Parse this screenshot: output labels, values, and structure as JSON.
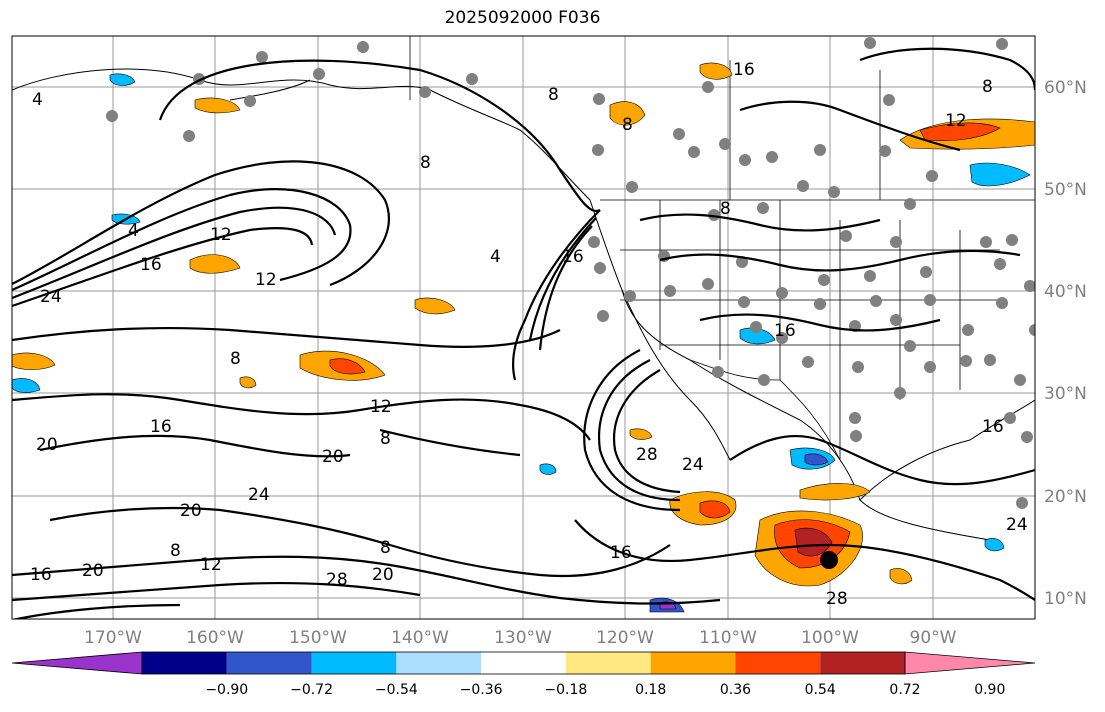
{
  "title": "2025092000 F036",
  "lon_labels": [
    "170°W",
    "160°W",
    "150°W",
    "140°W",
    "130°W",
    "120°W",
    "110°W",
    "100°W",
    "90°W"
  ],
  "lat_labels": [
    "60°N",
    "50°N",
    "40°N",
    "30°N",
    "20°N",
    "10°N"
  ],
  "colorbar": {
    "colors": [
      "#9933cc",
      "#00008b",
      "#3355cc",
      "#00bbff",
      "#aaddff",
      "#ffffff",
      "#ffe880",
      "#ffa500",
      "#ff4500",
      "#b22222",
      "#ff88aa"
    ],
    "tick_labels": [
      "−0.90",
      "−0.72",
      "−0.54",
      "−0.36",
      "−0.18",
      "0.18",
      "0.36",
      "0.54",
      "0.72",
      "0.90"
    ]
  },
  "contour_labels": [
    "4",
    "8",
    "12",
    "16",
    "20",
    "24",
    "28"
  ],
  "marker_icon": "storm-center-dot"
}
